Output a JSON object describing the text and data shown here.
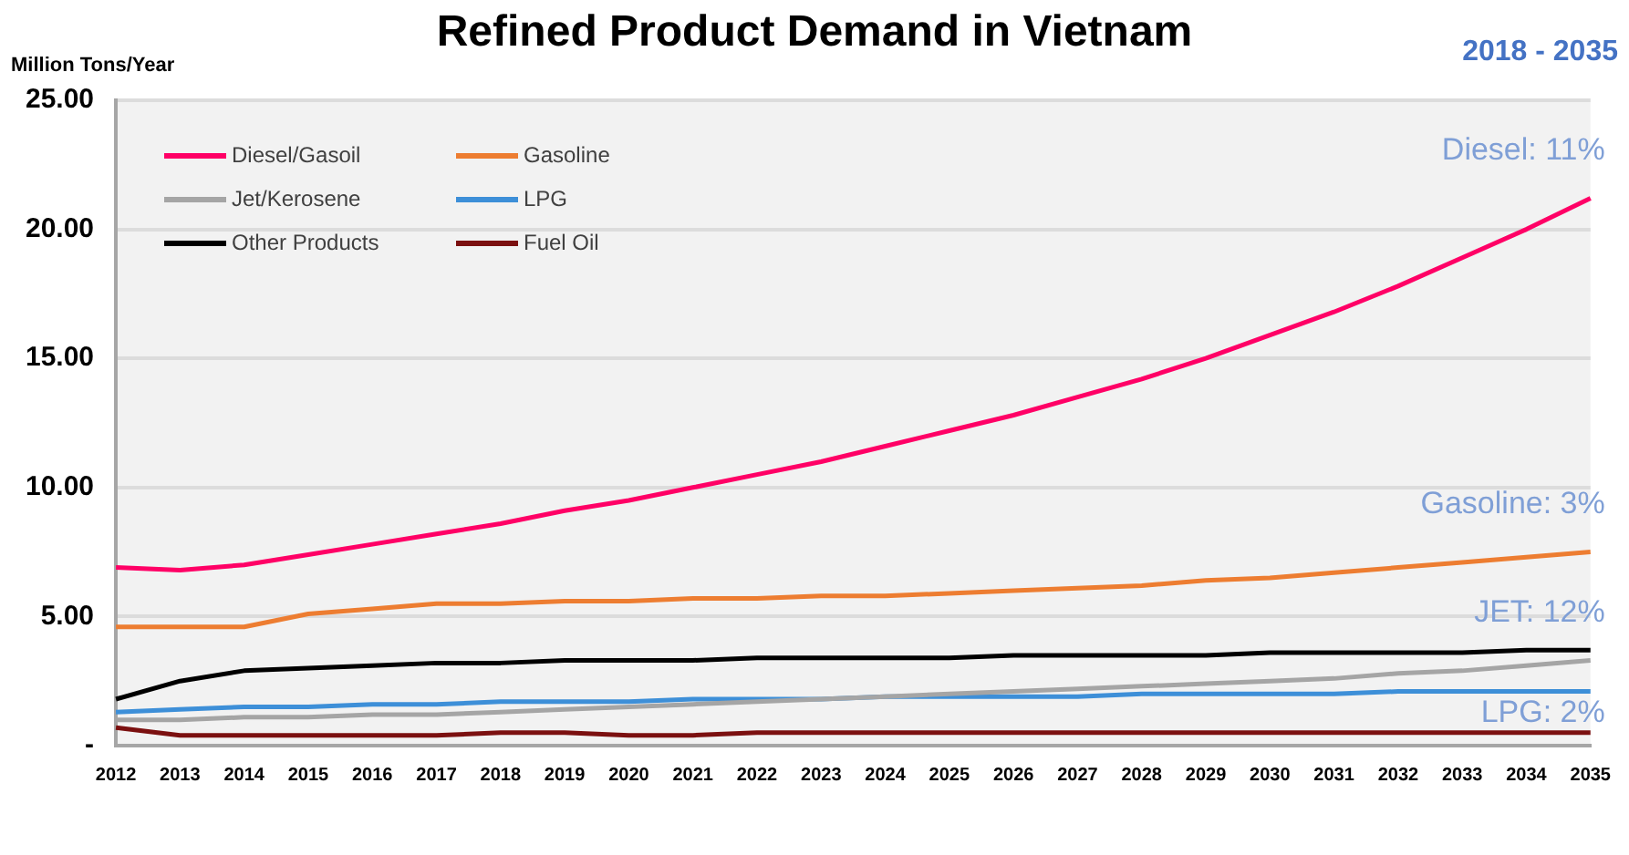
{
  "chart_data": {
    "type": "line",
    "title": "Refined Product Demand in Vietnam",
    "subtitle": "2018 - 2035",
    "ylabel": "Million Tons/Year",
    "categories": [
      "2012",
      "2013",
      "2014",
      "2015",
      "2016",
      "2017",
      "2018",
      "2019",
      "2020",
      "2021",
      "2022",
      "2023",
      "2024",
      "2025",
      "2026",
      "2027",
      "2028",
      "2029",
      "2030",
      "2031",
      "2032",
      "2033",
      "2034",
      "2035"
    ],
    "series": [
      {
        "name": "Diesel/Gasoil",
        "color": "#ff0066",
        "values": [
          6.9,
          6.8,
          7.0,
          7.4,
          7.8,
          8.2,
          8.6,
          9.1,
          9.5,
          10.0,
          10.5,
          11.0,
          11.6,
          12.2,
          12.8,
          13.5,
          14.2,
          15.0,
          15.9,
          16.8,
          17.8,
          18.9,
          20.0,
          21.2
        ]
      },
      {
        "name": "Gasoline",
        "color": "#ed7d31",
        "values": [
          4.6,
          4.6,
          4.6,
          5.1,
          5.3,
          5.5,
          5.5,
          5.6,
          5.6,
          5.7,
          5.7,
          5.8,
          5.8,
          5.9,
          6.0,
          6.1,
          6.2,
          6.4,
          6.5,
          6.7,
          6.9,
          7.1,
          7.3,
          7.5
        ]
      },
      {
        "name": "Jet/Kerosene",
        "color": "#a5a5a5",
        "values": [
          1.0,
          1.0,
          1.1,
          1.1,
          1.2,
          1.2,
          1.3,
          1.4,
          1.5,
          1.6,
          1.7,
          1.8,
          1.9,
          2.0,
          2.1,
          2.2,
          2.3,
          2.4,
          2.5,
          2.6,
          2.8,
          2.9,
          3.1,
          3.3
        ]
      },
      {
        "name": "LPG",
        "color": "#3d8fd8",
        "values": [
          1.3,
          1.4,
          1.5,
          1.5,
          1.6,
          1.6,
          1.7,
          1.7,
          1.7,
          1.8,
          1.8,
          1.8,
          1.9,
          1.9,
          1.9,
          1.9,
          2.0,
          2.0,
          2.0,
          2.0,
          2.1,
          2.1,
          2.1,
          2.1
        ]
      },
      {
        "name": "Other Products",
        "color": "#000000",
        "values": [
          1.8,
          2.5,
          2.9,
          3.0,
          3.1,
          3.2,
          3.2,
          3.3,
          3.3,
          3.3,
          3.4,
          3.4,
          3.4,
          3.4,
          3.5,
          3.5,
          3.5,
          3.5,
          3.6,
          3.6,
          3.6,
          3.6,
          3.7,
          3.7
        ]
      },
      {
        "name": "Fuel Oil",
        "color": "#7b1010",
        "values": [
          0.7,
          0.4,
          0.4,
          0.4,
          0.4,
          0.4,
          0.5,
          0.5,
          0.4,
          0.4,
          0.5,
          0.5,
          0.5,
          0.5,
          0.5,
          0.5,
          0.5,
          0.5,
          0.5,
          0.5,
          0.5,
          0.5,
          0.5,
          0.5
        ]
      }
    ],
    "ylim": [
      0,
      25
    ],
    "yticks": [
      {
        "value": 0,
        "label": "-"
      },
      {
        "value": 5,
        "label": "5.00"
      },
      {
        "value": 10,
        "label": "10.00"
      },
      {
        "value": 15,
        "label": "15.00"
      },
      {
        "value": 20,
        "label": "20.00"
      },
      {
        "value": 25,
        "label": "25.00"
      }
    ],
    "grid": "y",
    "legend": "top left",
    "marker": "none",
    "line_style": "solid",
    "annotations": [
      "Diesel: 11%",
      "Gasoline: 3%",
      "JET: 12%",
      "LPG: 2%"
    ]
  }
}
